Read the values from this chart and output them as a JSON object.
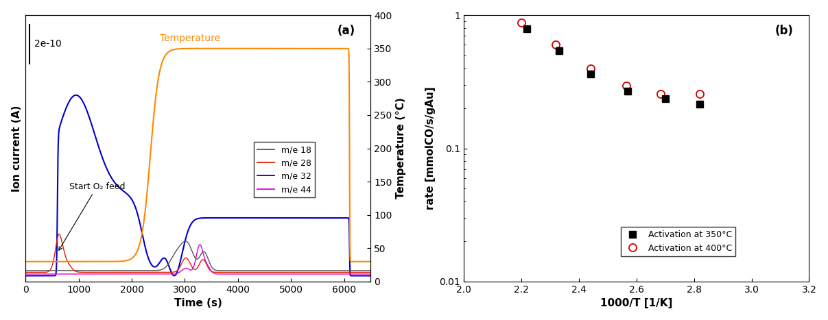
{
  "panel_a": {
    "title": "(a)",
    "xlabel": "Time (s)",
    "ylabel_left": "Ion current (A)",
    "ylabel_right": "Temperature (°C)",
    "scale_bar_label": "2e-10",
    "annotation_text": "Start O₂ feed",
    "temp_label": "Temperature",
    "legend_entries": [
      "m/e 18",
      "m/e 28",
      "m/e 32",
      "m/e 44"
    ],
    "line_colors": [
      "#555555",
      "#dd2200",
      "#0000cc",
      "#dd00dd"
    ],
    "temp_color": "#ff8800",
    "xlim": [
      0,
      6500
    ],
    "ylim_right": [
      0,
      400
    ],
    "temp_yticks": [
      0,
      50,
      100,
      150,
      200,
      250,
      300,
      350,
      400
    ]
  },
  "panel_b": {
    "title": "(b)",
    "xlabel": "1000/T [1/K]",
    "ylabel": "rate [mmolCO/s/gAu]",
    "xlim": [
      2.0,
      3.2
    ],
    "ylim": [
      0.01,
      1.0
    ],
    "x_350": [
      2.22,
      2.33,
      2.44,
      2.57,
      2.7,
      2.82
    ],
    "y_350": [
      0.795,
      0.54,
      0.36,
      0.27,
      0.235,
      0.215
    ],
    "x_400": [
      2.2,
      2.32,
      2.44,
      2.565,
      2.685,
      2.82
    ],
    "y_400": [
      0.875,
      0.6,
      0.4,
      0.295,
      0.258,
      0.258
    ],
    "color_350": "#000000",
    "color_400": "#cc0000",
    "legend_350": "Activation at 350°C",
    "legend_400": "Activation at 400°C"
  }
}
